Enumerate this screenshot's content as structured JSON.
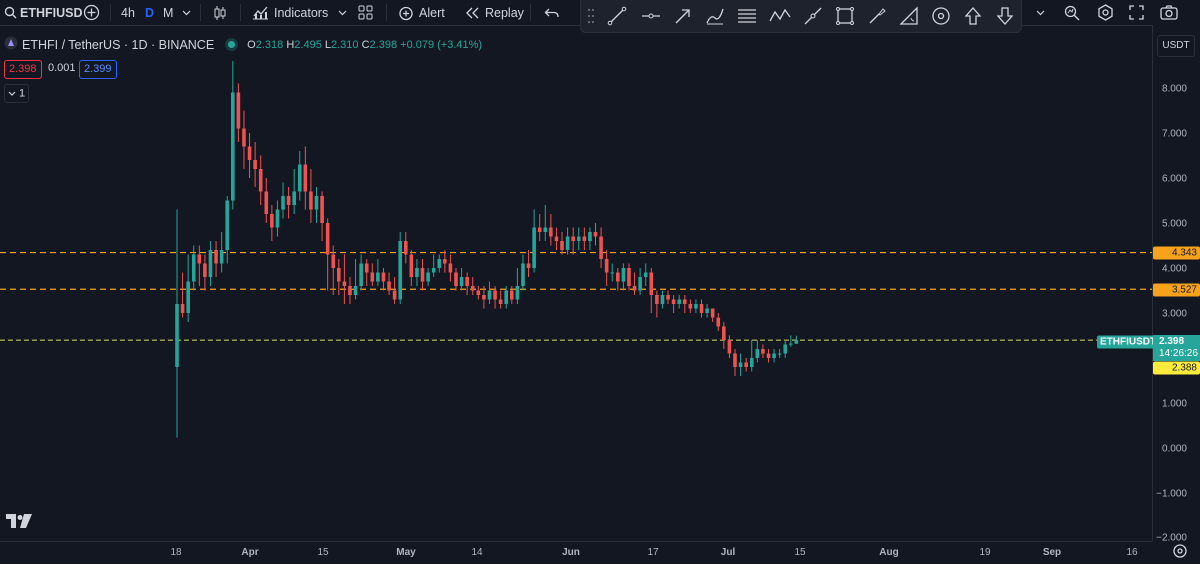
{
  "toolbar": {
    "symbol": "ETHFIUSD",
    "intervals": [
      "4h",
      "D",
      "M"
    ],
    "active_interval": "D",
    "indicators_label": "Indicators",
    "alert_label": "Alert",
    "replay_label": "Replay"
  },
  "legend": {
    "pair": "ETHFI / TetherUS · 1D · BINANCE",
    "open_label": "O",
    "open": "2.318",
    "high_label": "H",
    "high": "2.495",
    "low_label": "L",
    "low": "2.310",
    "close_label": "C",
    "close": "2.398",
    "change": "+0.079 (+3.41%)",
    "sell": "2.398",
    "spread": "0.001",
    "buy": "2.399",
    "collapse_count": "1"
  },
  "price_axis": {
    "currency": "USDT",
    "ticks": [
      "8.000",
      "7.000",
      "6.000",
      "5.000",
      "4.000",
      "3.000",
      "2.000",
      "1.000",
      "0.000",
      "−1.000",
      "−2.000"
    ],
    "symbol_tag": "ETHFIUSDT",
    "last_price": "2.398",
    "countdown": "14:26:26",
    "level_1": "4.343",
    "level_2": "3.527",
    "cursor_price": "2.388"
  },
  "time_axis": {
    "labels": [
      "18",
      "Apr",
      "15",
      "May",
      "14",
      "Jun",
      "17",
      "Jul",
      "15",
      "Aug",
      "19",
      "Sep",
      "16"
    ]
  },
  "colors": {
    "background": "#131722",
    "up": "#26a69a",
    "down": "#ef5350",
    "level_line": "#f7a21b",
    "last_price_line": "#d8d85a",
    "cursor_tag": "#ffeb3b"
  },
  "chart_data": {
    "type": "candlestick",
    "x_axis": "date",
    "y_axis": "price (USDT)",
    "ylim": [
      -2,
      8.8
    ],
    "horizontal_levels": [
      4.343,
      3.527
    ],
    "last_price": 2.398,
    "candles": [
      [
        1.8,
        3.2,
        0.23,
        5.3
      ],
      [
        3.2,
        3.0,
        2.9,
        3.9
      ],
      [
        3.0,
        3.7,
        2.8,
        4.3
      ],
      [
        3.7,
        4.3,
        3.5,
        4.5
      ],
      [
        4.3,
        4.1,
        3.6,
        4.5
      ],
      [
        4.1,
        3.8,
        3.5,
        4.3
      ],
      [
        3.8,
        4.4,
        3.6,
        4.6
      ],
      [
        4.4,
        4.1,
        3.8,
        4.6
      ],
      [
        4.1,
        4.4,
        3.9,
        4.8
      ],
      [
        4.4,
        5.5,
        4.1,
        5.6
      ],
      [
        5.5,
        7.9,
        5.3,
        8.6
      ],
      [
        7.9,
        7.1,
        6.8,
        8.1
      ],
      [
        7.1,
        6.7,
        6.2,
        7.5
      ],
      [
        6.7,
        6.4,
        6.0,
        7.0
      ],
      [
        6.4,
        6.2,
        5.8,
        6.8
      ],
      [
        6.2,
        5.7,
        5.4,
        6.5
      ],
      [
        5.7,
        5.2,
        5.0,
        6.0
      ],
      [
        5.2,
        4.9,
        4.6,
        5.4
      ],
      [
        4.9,
        5.3,
        4.7,
        5.5
      ],
      [
        5.3,
        5.6,
        5.1,
        5.9
      ],
      [
        5.6,
        5.4,
        5.1,
        5.8
      ],
      [
        5.4,
        5.7,
        5.2,
        6.2
      ],
      [
        5.7,
        6.3,
        5.5,
        6.6
      ],
      [
        6.3,
        5.7,
        5.3,
        6.7
      ],
      [
        5.7,
        5.3,
        5.0,
        6.2
      ],
      [
        5.3,
        5.6,
        5.0,
        5.8
      ],
      [
        5.6,
        5.0,
        4.6,
        5.7
      ],
      [
        5.0,
        4.3,
        3.5,
        5.1
      ],
      [
        4.3,
        4.0,
        3.4,
        4.5
      ],
      [
        4.0,
        3.7,
        3.4,
        4.2
      ],
      [
        3.7,
        3.6,
        3.2,
        4.3
      ],
      [
        3.6,
        3.4,
        3.2,
        3.8
      ],
      [
        3.4,
        3.6,
        3.3,
        4.2
      ],
      [
        3.6,
        4.1,
        3.5,
        4.3
      ],
      [
        4.1,
        3.9,
        3.6,
        4.2
      ],
      [
        3.9,
        3.7,
        3.6,
        4.1
      ],
      [
        3.7,
        3.9,
        3.6,
        4.2
      ],
      [
        3.9,
        3.7,
        3.5,
        4.0
      ],
      [
        3.7,
        3.5,
        3.4,
        3.9
      ],
      [
        3.5,
        3.3,
        3.2,
        3.8
      ],
      [
        3.3,
        4.6,
        3.2,
        4.8
      ],
      [
        4.6,
        4.3,
        4.1,
        4.8
      ],
      [
        4.3,
        3.8,
        3.6,
        4.4
      ],
      [
        3.8,
        4.0,
        3.6,
        4.2
      ],
      [
        4.0,
        3.7,
        3.5,
        4.2
      ],
      [
        3.7,
        3.9,
        3.6,
        4.0
      ],
      [
        3.9,
        4.0,
        3.8,
        4.3
      ],
      [
        4.0,
        4.2,
        3.9,
        4.3
      ],
      [
        4.2,
        4.1,
        3.9,
        4.4
      ],
      [
        4.1,
        3.9,
        3.7,
        4.3
      ],
      [
        3.9,
        3.6,
        3.5,
        4.0
      ],
      [
        3.6,
        3.8,
        3.5,
        4.0
      ],
      [
        3.8,
        3.6,
        3.4,
        3.9
      ],
      [
        3.6,
        3.5,
        3.4,
        3.8
      ],
      [
        3.5,
        3.4,
        3.3,
        3.6
      ],
      [
        3.4,
        3.3,
        3.1,
        3.6
      ],
      [
        3.3,
        3.5,
        3.2,
        3.7
      ],
      [
        3.5,
        3.3,
        3.1,
        3.6
      ],
      [
        3.3,
        3.2,
        3.1,
        3.5
      ],
      [
        3.2,
        3.5,
        3.1,
        3.6
      ],
      [
        3.5,
        3.3,
        3.2,
        3.6
      ],
      [
        3.3,
        3.6,
        3.2,
        4.0
      ],
      [
        3.6,
        4.1,
        3.5,
        4.3
      ],
      [
        4.1,
        4.0,
        3.8,
        4.4
      ],
      [
        4.0,
        4.9,
        3.9,
        5.3
      ],
      [
        4.9,
        4.8,
        4.6,
        5.2
      ],
      [
        4.8,
        4.9,
        4.6,
        5.4
      ],
      [
        4.9,
        4.7,
        4.5,
        5.2
      ],
      [
        4.7,
        4.6,
        4.4,
        4.9
      ],
      [
        4.6,
        4.4,
        4.3,
        4.8
      ],
      [
        4.4,
        4.7,
        4.3,
        4.9
      ],
      [
        4.7,
        4.6,
        4.3,
        4.9
      ],
      [
        4.6,
        4.7,
        4.4,
        4.9
      ],
      [
        4.7,
        4.6,
        4.4,
        4.9
      ],
      [
        4.6,
        4.8,
        4.4,
        4.9
      ],
      [
        4.8,
        4.7,
        4.5,
        5.0
      ],
      [
        4.7,
        4.2,
        4.0,
        4.9
      ],
      [
        4.2,
        3.9,
        3.6,
        4.4
      ],
      [
        3.9,
        3.9,
        3.7,
        4.1
      ],
      [
        3.9,
        3.7,
        3.5,
        4.0
      ],
      [
        3.7,
        4.0,
        3.5,
        4.1
      ],
      [
        4.0,
        3.6,
        3.5,
        4.1
      ],
      [
        3.6,
        3.5,
        3.4,
        3.9
      ],
      [
        3.5,
        3.8,
        3.4,
        4.0
      ],
      [
        3.8,
        3.9,
        3.6,
        4.1
      ],
      [
        3.9,
        3.4,
        3.0,
        4.0
      ],
      [
        3.4,
        3.2,
        2.9,
        3.5
      ],
      [
        3.2,
        3.4,
        3.1,
        3.5
      ],
      [
        3.4,
        3.3,
        3.2,
        3.5
      ],
      [
        3.3,
        3.2,
        3.0,
        3.4
      ],
      [
        3.2,
        3.3,
        3.1,
        3.4
      ],
      [
        3.3,
        3.2,
        3.0,
        3.4
      ],
      [
        3.2,
        3.1,
        3.0,
        3.3
      ],
      [
        3.1,
        3.2,
        3.0,
        3.3
      ],
      [
        3.2,
        3.0,
        2.9,
        3.3
      ],
      [
        3.0,
        3.1,
        2.9,
        3.2
      ],
      [
        3.1,
        2.9,
        2.8,
        3.1
      ],
      [
        2.9,
        2.7,
        2.6,
        3.0
      ],
      [
        2.7,
        2.4,
        2.2,
        2.8
      ],
      [
        2.4,
        2.1,
        2.0,
        2.5
      ],
      [
        2.1,
        1.8,
        1.6,
        2.2
      ],
      [
        1.8,
        1.9,
        1.6,
        2.1
      ],
      [
        1.9,
        1.8,
        1.7,
        2.0
      ],
      [
        1.8,
        2.0,
        1.7,
        2.4
      ],
      [
        2.0,
        2.2,
        1.9,
        2.4
      ],
      [
        2.2,
        2.1,
        2.0,
        2.3
      ],
      [
        2.1,
        2.0,
        1.9,
        2.2
      ],
      [
        2.0,
        2.1,
        1.9,
        2.2
      ],
      [
        2.1,
        2.1,
        2.0,
        2.2
      ],
      [
        2.1,
        2.3,
        2.0,
        2.4
      ],
      [
        2.3,
        2.32,
        2.25,
        2.5
      ],
      [
        2.318,
        2.398,
        2.31,
        2.495
      ]
    ]
  }
}
